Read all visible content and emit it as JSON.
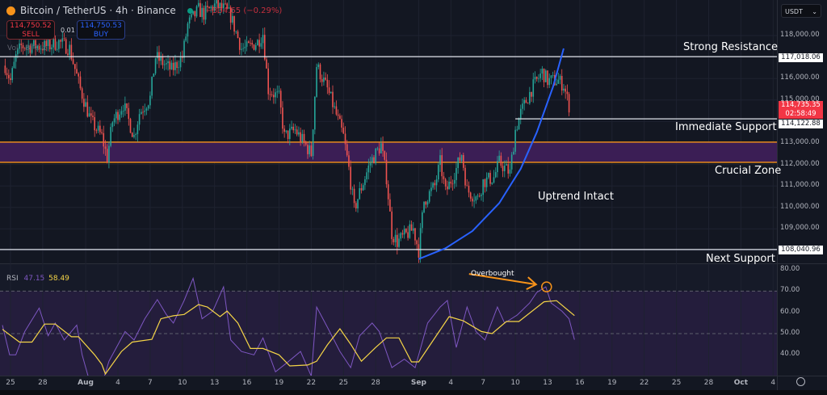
{
  "header": {
    "symbol": "Bitcoin / TetherUS · 4h · Binance",
    "change": "−334.65 (−0.29%)"
  },
  "trade": {
    "sell_price": "114,750.52",
    "sell_label": "SELL",
    "buy_price": "114,750.53",
    "buy_label": "BUY",
    "quantity": "0.01"
  },
  "volume_label": "Vol · BTC",
  "currency": "USDT",
  "colors": {
    "bg": "#131722",
    "up": "#26a69a",
    "down": "#ef5350",
    "zone": "#3b1e55",
    "zone_line": "#f7931a",
    "rsi": "#7e57c2",
    "rsi_ma": "#f5d547",
    "trend": "#2962ff"
  },
  "chart_data": [
    {
      "type": "candlestick",
      "title": "Bitcoin / TetherUS · 4h · Binance",
      "ylim": [
        107400,
        119600
      ],
      "y_ticks": [
        "118,000.00",
        "116,000.00",
        "115,000.00",
        "113,000.00",
        "112,000.00",
        "111,000.00",
        "110,000.00",
        "109,000.00"
      ],
      "y_tick_values": [
        118000,
        116000,
        115000,
        113000,
        112000,
        111000,
        110000,
        109000
      ],
      "x_ticks": [
        {
          "label": "25",
          "date": "07-25"
        },
        {
          "label": "28",
          "date": "07-28"
        },
        {
          "label": "Aug",
          "date": "08-01"
        },
        {
          "label": "4",
          "date": "08-04"
        },
        {
          "label": "7",
          "date": "08-07"
        },
        {
          "label": "10",
          "date": "08-10"
        },
        {
          "label": "13",
          "date": "08-13"
        },
        {
          "label": "16",
          "date": "08-16"
        },
        {
          "label": "19",
          "date": "08-19"
        },
        {
          "label": "22",
          "date": "08-22"
        },
        {
          "label": "25",
          "date": "08-25"
        },
        {
          "label": "28",
          "date": "08-28"
        },
        {
          "label": "Sep",
          "date": "09-01"
        },
        {
          "label": "4",
          "date": "09-04"
        },
        {
          "label": "7",
          "date": "09-07"
        },
        {
          "label": "10",
          "date": "09-10"
        },
        {
          "label": "13",
          "date": "09-13"
        },
        {
          "label": "16",
          "date": "09-16"
        },
        {
          "label": "19",
          "date": "09-19"
        },
        {
          "label": "22",
          "date": "09-22"
        },
        {
          "label": "25",
          "date": "09-25"
        },
        {
          "label": "28",
          "date": "09-28"
        },
        {
          "label": "Oct",
          "date": "10-01"
        },
        {
          "label": "4",
          "date": "10-04"
        }
      ],
      "close": [
        [
          "07-24 12",
          116600
        ],
        [
          "07-25 00",
          115900
        ],
        [
          "07-25 12",
          117000
        ],
        [
          "07-26 00",
          117500
        ],
        [
          "07-27 12",
          117500
        ],
        [
          "07-28 12",
          117500
        ],
        [
          "07-29 12",
          117700
        ],
        [
          "07-30 12",
          117400
        ],
        [
          "07-31 12",
          115500
        ],
        [
          "08-01 12",
          114000
        ],
        [
          "08-02 12",
          113300
        ],
        [
          "08-03 00",
          112300
        ],
        [
          "08-03 12",
          114000
        ],
        [
          "08-04 12",
          114800
        ],
        [
          "08-05 12",
          113300
        ],
        [
          "08-06 00",
          114400
        ],
        [
          "08-07 00",
          115100
        ],
        [
          "08-07 12",
          117000
        ],
        [
          "08-08 12",
          116600
        ],
        [
          "08-09 00",
          116400
        ],
        [
          "08-10 00",
          117000
        ],
        [
          "08-10 12",
          118500
        ],
        [
          "08-11 12",
          119200
        ],
        [
          "08-12 00",
          119000
        ],
        [
          "08-13 00",
          119400
        ],
        [
          "08-14 00",
          119200
        ],
        [
          "08-14 12",
          118900
        ],
        [
          "08-15 12",
          117400
        ],
        [
          "08-16 00",
          117400
        ],
        [
          "08-17 00",
          117700
        ],
        [
          "08-17 12",
          118100
        ],
        [
          "08-18 00",
          115500
        ],
        [
          "08-19 00",
          115100
        ],
        [
          "08-19 12",
          113300
        ],
        [
          "08-20 12",
          113600
        ],
        [
          "08-22 00",
          112500
        ],
        [
          "08-22 12",
          116600
        ],
        [
          "08-23 12",
          115500
        ],
        [
          "08-24 00",
          114800
        ],
        [
          "08-25 00",
          113300
        ],
        [
          "08-25 12",
          111800
        ],
        [
          "08-26 00",
          109900
        ],
        [
          "08-26 12",
          110700
        ],
        [
          "08-27 12",
          112100
        ],
        [
          "08-28 12",
          112900
        ],
        [
          "08-29 00",
          111400
        ],
        [
          "08-29 12",
          108800
        ],
        [
          "08-30 00",
          108400
        ],
        [
          "08-31 00",
          108800
        ],
        [
          "08-31 12",
          109000
        ],
        [
          "09-01 00",
          108000
        ],
        [
          "09-01 12",
          110300
        ],
        [
          "09-02 12",
          111000
        ],
        [
          "09-03 00",
          112100
        ],
        [
          "09-03 12",
          110700
        ],
        [
          "09-04 12",
          111800
        ],
        [
          "09-05 00",
          112500
        ],
        [
          "09-05 12",
          110800
        ],
        [
          "09-06 12",
          110400
        ],
        [
          "09-07 00",
          111200
        ],
        [
          "09-08 00",
          111400
        ],
        [
          "09-08 12",
          112100
        ],
        [
          "09-09 12",
          111600
        ],
        [
          "09-10 00",
          113600
        ],
        [
          "09-10 12",
          114400
        ],
        [
          "09-11 12",
          115500
        ],
        [
          "09-12 12",
          116300
        ],
        [
          "09-13 00",
          115900
        ],
        [
          "09-14 00",
          115900
        ],
        [
          "09-14 12",
          115700
        ],
        [
          "09-15 00",
          114735.35
        ]
      ],
      "last_price": "114,735.35",
      "countdown": "02:58:49",
      "levels": [
        {
          "label": "Strong Resistance",
          "price": 117018.06,
          "price_label": "117,018.06",
          "from": "07-23 00"
        },
        {
          "label": "Immediate Support",
          "price": 114122.88,
          "price_label": "114,122.88",
          "from": "09-10 00"
        },
        {
          "label": "Next Support",
          "price": 108040.96,
          "price_label": "108,040.96",
          "from": "07-23 00"
        }
      ],
      "zone": {
        "label": "Crucial Zone",
        "top": 113040,
        "bottom": 112100
      },
      "trendline": {
        "label": "Uptrend Intact",
        "points": [
          [
            "09-01 00",
            107600
          ],
          [
            "09-03 12",
            108100
          ],
          [
            "09-06 00",
            108900
          ],
          [
            "09-08 12",
            110200
          ],
          [
            "09-10 12",
            111800
          ],
          [
            "09-12 00",
            113500
          ],
          [
            "09-13 12",
            115600
          ],
          [
            "09-14 12",
            117400
          ]
        ]
      }
    },
    {
      "type": "line",
      "title": "RSI",
      "rsi_value": "47.15",
      "ma_value": "58.49",
      "ylim": [
        29,
        82
      ],
      "y_ticks": [
        "80.00",
        "70.00",
        "60.00",
        "50.00",
        "40.00"
      ],
      "y_tick_values": [
        80,
        70,
        60,
        50,
        40
      ],
      "band": [
        30,
        70
      ],
      "series": [
        {
          "key": "rsi",
          "values": [
            [
              "07-24 06",
              54
            ],
            [
              "07-24 22",
              40
            ],
            [
              "07-25 12",
              40
            ],
            [
              "07-26 08",
              51
            ],
            [
              "07-27 16",
              62
            ],
            [
              "07-28 12",
              49
            ],
            [
              "07-29 04",
              55
            ],
            [
              "07-30 00",
              47
            ],
            [
              "07-31 04",
              54
            ],
            [
              "07-31 16",
              40
            ],
            [
              "08-01 12",
              25
            ],
            [
              "08-02 12",
              26
            ],
            [
              "08-03 04",
              37
            ],
            [
              "08-04 16",
              51
            ],
            [
              "08-05 12",
              47
            ],
            [
              "08-06 12",
              57
            ],
            [
              "08-07 16",
              66
            ],
            [
              "08-08 12",
              59
            ],
            [
              "08-09 04",
              55
            ],
            [
              "08-10 04",
              65.6
            ],
            [
              "08-11 00",
              76
            ],
            [
              "08-11 20",
              57
            ],
            [
              "08-12 20",
              60.6
            ],
            [
              "08-13 20",
              72
            ],
            [
              "08-14 12",
              47
            ],
            [
              "08-15 12",
              41.6
            ],
            [
              "08-16 16",
              40
            ],
            [
              "08-17 12",
              48
            ],
            [
              "08-18 16",
              32
            ],
            [
              "08-19 16",
              36
            ],
            [
              "08-21 00",
              41.6
            ],
            [
              "08-22 00",
              30
            ],
            [
              "08-22 12",
              62.5
            ],
            [
              "08-23 12",
              53
            ],
            [
              "08-24 16",
              41.6
            ],
            [
              "08-25 16",
              34
            ],
            [
              "08-26 12",
              49
            ],
            [
              "08-27 16",
              55
            ],
            [
              "08-28 08",
              51
            ],
            [
              "08-29 12",
              34
            ],
            [
              "08-30 16",
              38
            ],
            [
              "08-31 16",
              34
            ],
            [
              "09-01 20",
              55
            ],
            [
              "09-03 00",
              62.5
            ],
            [
              "09-03 16",
              65.6
            ],
            [
              "09-04 12",
              43.5
            ],
            [
              "09-05 12",
              62.5
            ],
            [
              "09-06 08",
              51
            ],
            [
              "09-07 04",
              47
            ],
            [
              "09-08 08",
              62.5
            ],
            [
              "09-09 00",
              55
            ],
            [
              "09-10 04",
              58.7
            ],
            [
              "09-11 08",
              64.4
            ],
            [
              "09-12 00",
              69.4
            ],
            [
              "09-12 20",
              72
            ],
            [
              "09-13 08",
              64.4
            ],
            [
              "09-14 08",
              60.6
            ],
            [
              "09-15 00",
              57
            ],
            [
              "09-15 12",
              47.15
            ]
          ]
        },
        {
          "key": "rsi_ma",
          "values": [
            [
              "07-24 06",
              52
            ],
            [
              "07-25 20",
              46
            ],
            [
              "07-27 00",
              46
            ],
            [
              "07-28 04",
              54.5
            ],
            [
              "07-29 04",
              54.5
            ],
            [
              "07-30 16",
              48.5
            ],
            [
              "07-31 08",
              48.5
            ],
            [
              "08-01 20",
              40
            ],
            [
              "08-02 12",
              35.5
            ],
            [
              "08-02 20",
              31
            ],
            [
              "08-04 08",
              41.6
            ],
            [
              "08-05 08",
              46
            ],
            [
              "08-07 04",
              47.3
            ],
            [
              "08-08 00",
              57
            ],
            [
              "08-09 04",
              58.4
            ],
            [
              "08-10 04",
              59
            ],
            [
              "08-11 12",
              63.7
            ],
            [
              "08-12 08",
              62.5
            ],
            [
              "08-13 12",
              58
            ],
            [
              "08-14 04",
              60.6
            ],
            [
              "08-15 04",
              55
            ],
            [
              "08-16 08",
              43
            ],
            [
              "08-17 12",
              43
            ],
            [
              "08-19 00",
              40
            ],
            [
              "08-20 00",
              34.8
            ],
            [
              "08-21 16",
              35.2
            ],
            [
              "08-22 12",
              37
            ],
            [
              "08-23 12",
              44.7
            ],
            [
              "08-24 16",
              52.3
            ],
            [
              "08-25 16",
              45
            ],
            [
              "08-26 16",
              37
            ],
            [
              "08-28 00",
              43.5
            ],
            [
              "08-29 00",
              48
            ],
            [
              "08-30 04",
              48
            ],
            [
              "08-31 08",
              36.7
            ],
            [
              "09-01 00",
              36.7
            ],
            [
              "09-03 20",
              58
            ],
            [
              "09-05 04",
              56
            ],
            [
              "09-06 20",
              51
            ],
            [
              "09-07 20",
              50
            ],
            [
              "09-09 04",
              55.7
            ],
            [
              "09-10 08",
              55.7
            ],
            [
              "09-12 16",
              65
            ],
            [
              "09-13 20",
              65.5
            ],
            [
              "09-15 12",
              58.49
            ]
          ]
        }
      ],
      "annotation": {
        "label": "Overbought",
        "at": [
          "09-12 20",
          72
        ]
      }
    }
  ]
}
